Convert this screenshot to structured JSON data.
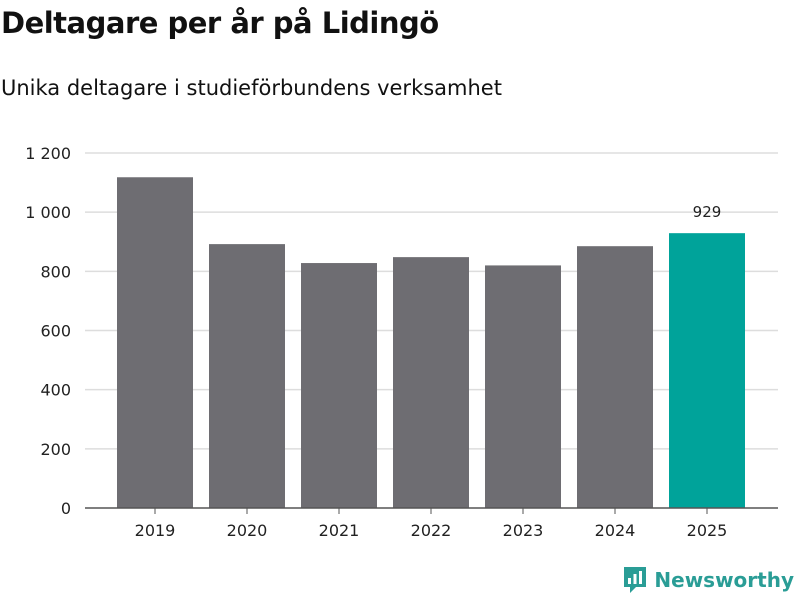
{
  "chart_data": {
    "type": "bar",
    "title": "Deltagare per år på Lidingö",
    "subtitle": "Unika deltagare i studieförbundens verksamhet",
    "categories": [
      "2019",
      "2020",
      "2021",
      "2022",
      "2023",
      "2024",
      "2025"
    ],
    "values": [
      1118,
      892,
      828,
      848,
      820,
      885,
      929
    ],
    "highlight_index": 6,
    "data_labels": [
      {
        "index": 6,
        "text": "929"
      }
    ],
    "ylim": [
      0,
      1200
    ],
    "yticks": [
      {
        "value": 0,
        "label": "0"
      },
      {
        "value": 200,
        "label": "200"
      },
      {
        "value": 400,
        "label": "400"
      },
      {
        "value": 600,
        "label": "600"
      },
      {
        "value": 800,
        "label": "800"
      },
      {
        "value": 1000,
        "label": "1 000"
      },
      {
        "value": 1200,
        "label": "1 200"
      }
    ],
    "xlabel": "",
    "ylabel": "",
    "grid": true,
    "colors": {
      "bar": "#6e6d72",
      "highlight": "#00a39a",
      "grid": "#dddddd",
      "axis": "#555555"
    }
  },
  "brand": {
    "name": "Newsworthy",
    "icon": "newsworthy-logo-icon",
    "color": "#2a9d96"
  }
}
